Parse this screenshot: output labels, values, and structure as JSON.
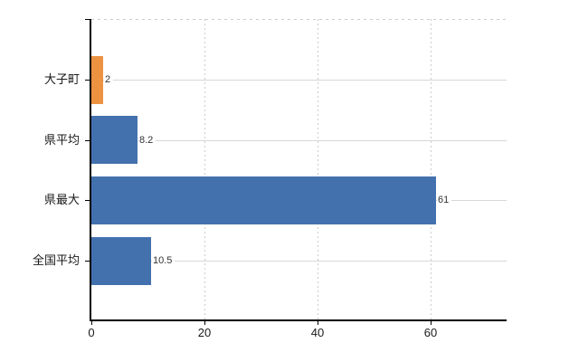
{
  "chart_data": {
    "type": "bar",
    "orientation": "horizontal",
    "title": "",
    "xlabel": "",
    "ylabel": "",
    "categories": [
      "大子町",
      "県平均",
      "県最大",
      "全国平均"
    ],
    "values": [
      2,
      8.2,
      61,
      10.5
    ],
    "value_labels": [
      "2",
      "8.2",
      "61",
      "10.5"
    ],
    "bar_colors": [
      "#ec9241",
      "#4371ae",
      "#4371ae",
      "#4371ae"
    ],
    "xticks": [
      0,
      20,
      40,
      60
    ],
    "xtick_labels": [
      "0",
      "20",
      "40",
      "60"
    ],
    "xlim": [
      0,
      73.4
    ],
    "grid": true,
    "legend": "none"
  },
  "colors": {
    "highlight_bar": "#ec9241",
    "default_bar": "#4371ae",
    "axis": "#000000",
    "grid_horizontal": "#d5dad5",
    "grid_vertical": "#cccccc",
    "plot_top_border": "#cccccc",
    "tick_label": "#1a1a1a",
    "value_label": "#333333",
    "background": "#ffffff"
  }
}
